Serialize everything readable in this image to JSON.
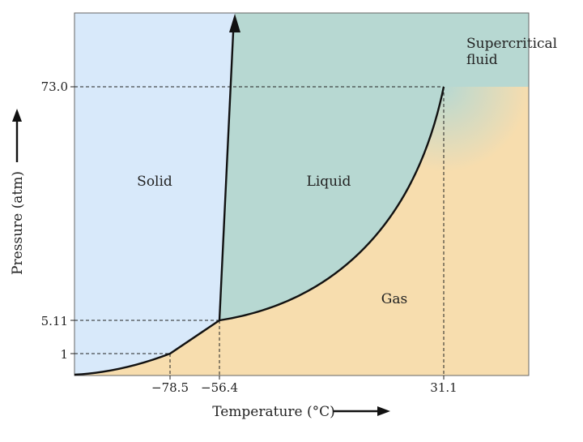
{
  "chart_data": {
    "type": "phase-diagram",
    "title": "",
    "xlabel": "Temperature (°C)",
    "ylabel": "Pressure (atm)",
    "x_ticks": [
      {
        "label": "−78.5",
        "value": -78.5
      },
      {
        "label": "−56.4",
        "value": -56.4
      },
      {
        "label": "31.1",
        "value": 31.1
      }
    ],
    "y_ticks": [
      {
        "label": "1",
        "value": 1
      },
      {
        "label": "5.11",
        "value": 5.11
      },
      {
        "label": "73.0",
        "value": 73.0
      }
    ],
    "regions": [
      {
        "key": "solid",
        "label": "Solid",
        "color": "#d8e9fa"
      },
      {
        "key": "liquid",
        "label": "Liquid",
        "color": "#b7d8d2"
      },
      {
        "key": "gas",
        "label": "Gas",
        "color": "#f7ddae"
      },
      {
        "key": "supercritical",
        "label": "Supercritical fluid",
        "label_lines": [
          "Supercritical",
          "fluid"
        ]
      }
    ],
    "points": {
      "sublimation_at_1atm": {
        "T": -78.5,
        "P": 1
      },
      "triple_point": {
        "T": -56.4,
        "P": 5.11
      },
      "critical_point": {
        "T": 31.1,
        "P": 73.0
      }
    },
    "axis_arrows": true,
    "grid": false
  }
}
